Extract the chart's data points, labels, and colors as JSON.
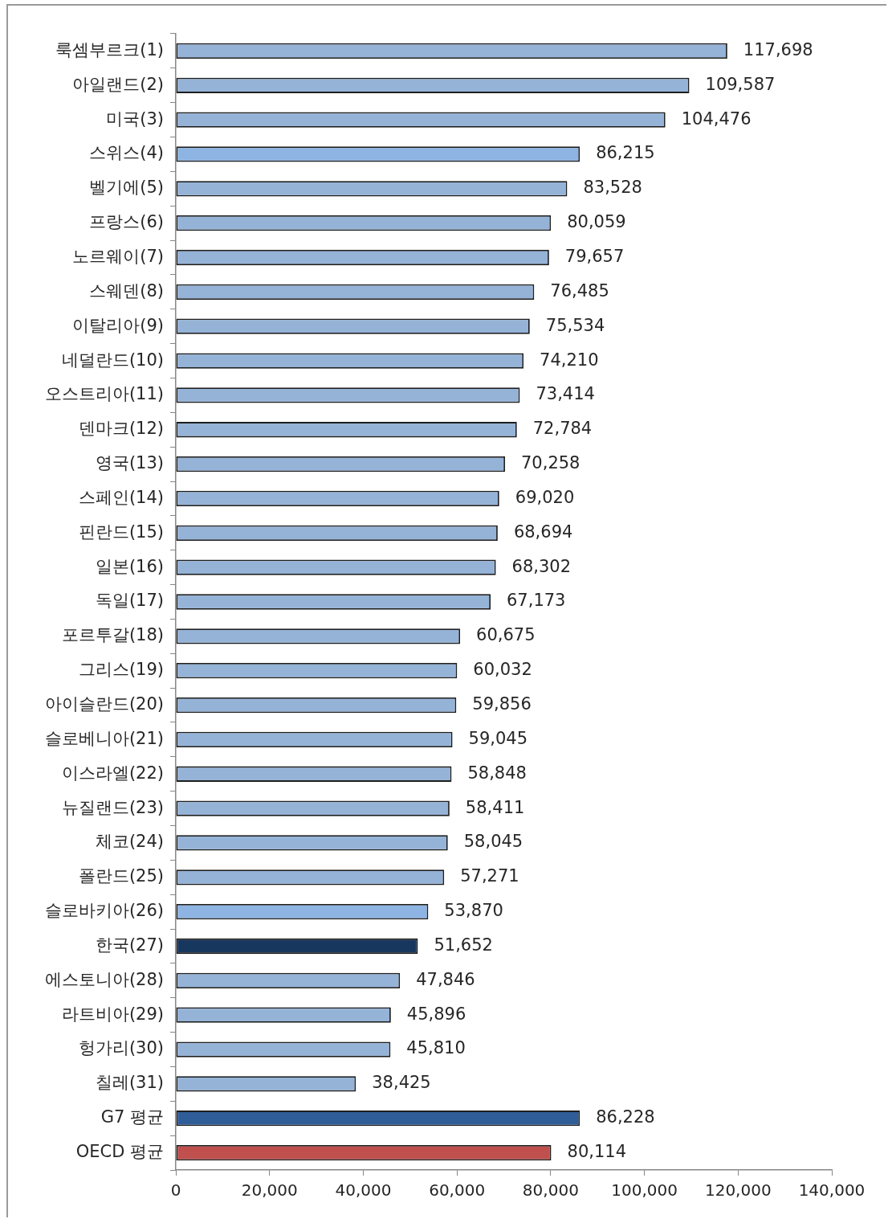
{
  "chart_data": {
    "type": "bar",
    "orientation": "horizontal",
    "categories": [
      "룩셈부르크(1)",
      "아일랜드(2)",
      "미국(3)",
      "스위스(4)",
      "벨기에(5)",
      "프랑스(6)",
      "노르웨이(7)",
      "스웨덴(8)",
      "이탈리아(9)",
      "네덜란드(10)",
      "오스트리아(11)",
      "덴마크(12)",
      "영국(13)",
      "스페인(14)",
      "핀란드(15)",
      "일본(16)",
      "독일(17)",
      "포르투갈(18)",
      "그리스(19)",
      "아이슬란드(20)",
      "슬로베니아(21)",
      "이스라엘(22)",
      "뉴질랜드(23)",
      "체코(24)",
      "폴란드(25)",
      "슬로바키아(26)",
      "한국(27)",
      "에스토니아(28)",
      "라트비아(29)",
      "헝가리(30)",
      "칠레(31)",
      "G7 평균",
      "OECD 평균"
    ],
    "values": [
      117698,
      109587,
      104476,
      86215,
      83528,
      80059,
      79657,
      76485,
      75534,
      74210,
      73414,
      72784,
      70258,
      69020,
      68694,
      68302,
      67173,
      60675,
      60032,
      59856,
      59045,
      58848,
      58411,
      58045,
      57271,
      53870,
      51652,
      47846,
      45896,
      45810,
      38425,
      86228,
      80114
    ],
    "value_labels": [
      "117,698",
      "109,587",
      "104,476",
      "86,215",
      "83,528",
      "80,059",
      "79,657",
      "76,485",
      "75,534",
      "74,210",
      "73,414",
      "72,784",
      "70,258",
      "69,020",
      "68,694",
      "68,302",
      "67,173",
      "60,675",
      "60,032",
      "59,856",
      "59,045",
      "58,848",
      "58,411",
      "58,045",
      "57,271",
      "53,870",
      "51,652",
      "47,846",
      "45,896",
      "45,810",
      "38,425",
      "86,228",
      "80,114"
    ],
    "colors": [
      "#95b3d7",
      "#95b3d7",
      "#95b3d7",
      "#8db4e2",
      "#95b3d7",
      "#95b3d7",
      "#95b3d7",
      "#95b3d7",
      "#95b3d7",
      "#95b3d7",
      "#95b3d7",
      "#95b3d7",
      "#95b3d7",
      "#95b3d7",
      "#95b3d7",
      "#95b3d7",
      "#95b3d7",
      "#95b3d7",
      "#95b3d7",
      "#95b3d7",
      "#95b3d7",
      "#95b3d7",
      "#95b3d7",
      "#95b3d7",
      "#95b3d7",
      "#8db4e2",
      "#17375e",
      "#95b3d7",
      "#95b3d7",
      "#95b3d7",
      "#95b3d7",
      "#2f5d98",
      "#c0504d"
    ],
    "xlim": [
      0,
      140000
    ],
    "xticks": [
      0,
      {
        "value": 20000,
        "label": "20,000"
      },
      {
        "value": 40000,
        "label": "40,000"
      },
      {
        "value": 60000,
        "label": "60,000"
      },
      {
        "value": 80000,
        "label": "80,000"
      },
      {
        "value": 100000,
        "label": "100,000"
      },
      {
        "value": 120000,
        "label": "120,000"
      },
      {
        "value": 140000,
        "label": "140,000"
      }
    ]
  }
}
